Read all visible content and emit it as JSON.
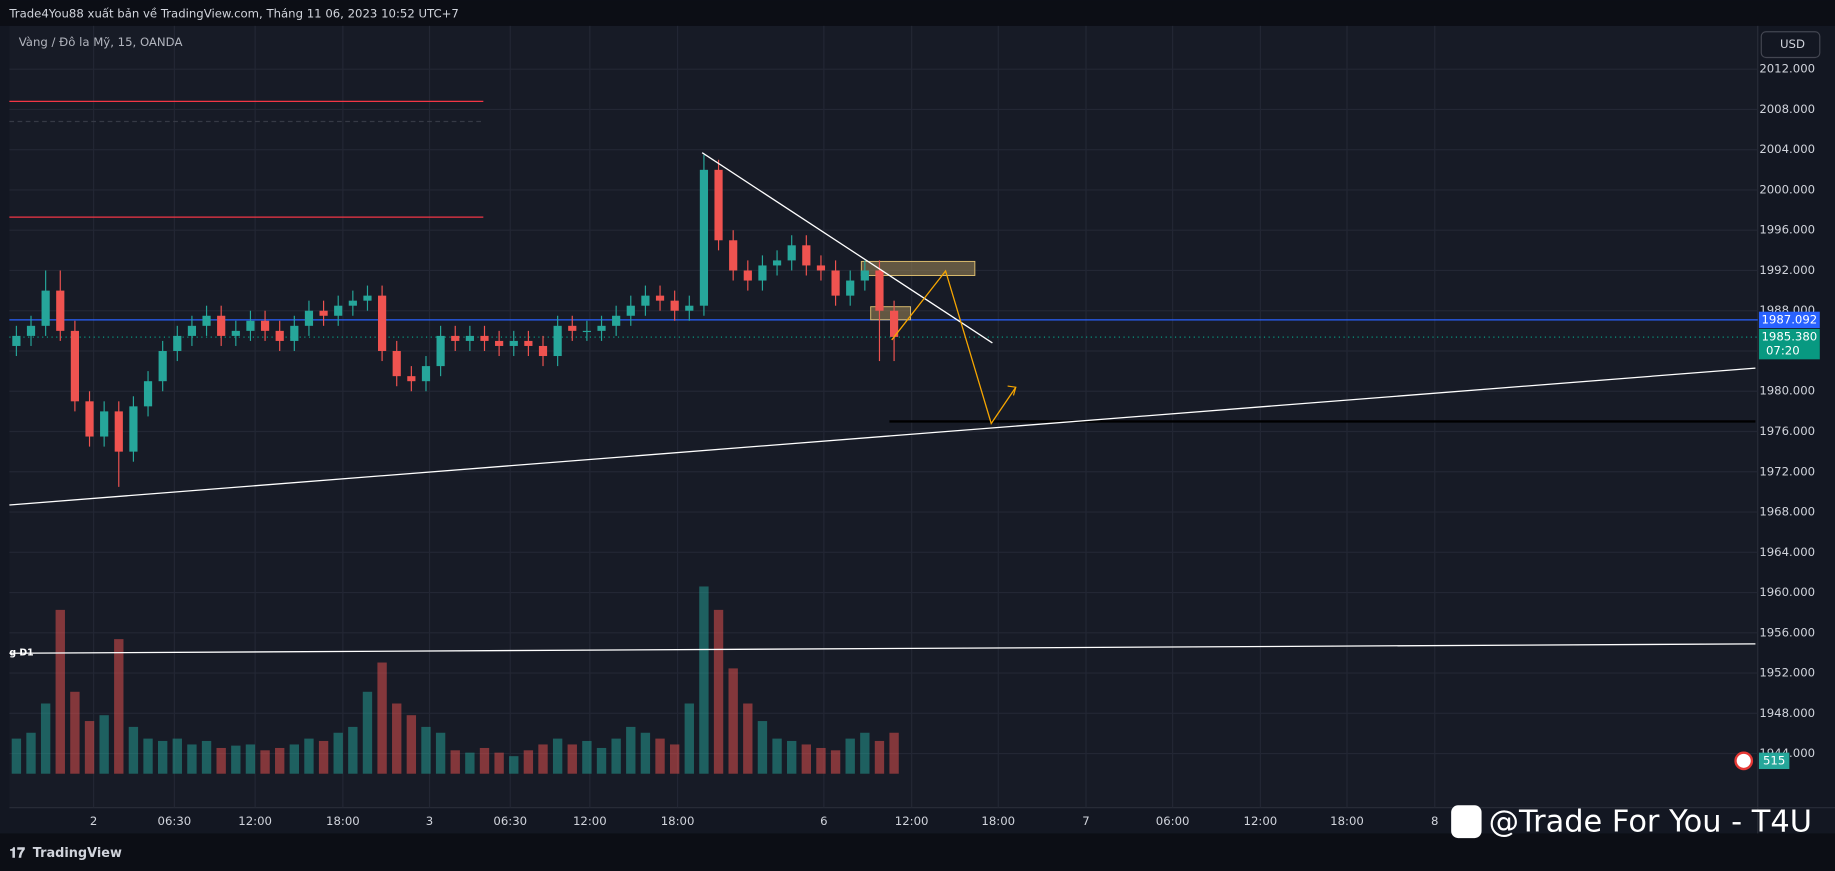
{
  "header": {
    "title": "Trade4You88 xuất bản về TradingView.com, Tháng 11 06, 2023 10:52 UTC+7"
  },
  "chart_data": {
    "type": "candlestick",
    "symbol": "Vàng / Đô la Mỹ, 15, OANDA",
    "currency": "USD",
    "up_color": "#26a69a",
    "down_color": "#ef5350",
    "open": [
      1984.5,
      1985.5,
      1986.5,
      1990,
      1986,
      1979,
      1975.5,
      1978,
      1974,
      1978.5,
      1981,
      1984,
      1985.5,
      1986.5,
      1987.5,
      1985.5,
      1986,
      1987,
      1986,
      1985,
      1986.5,
      1988,
      1987.5,
      1988.5,
      1989,
      1989.5,
      1984,
      1981.5,
      1981,
      1982.5,
      1985.5,
      1985,
      1985.5,
      1985,
      1984.5,
      1985,
      1984.5,
      1983.5,
      1986.5,
      1986,
      1986,
      1986.5,
      1987.5,
      1988.5,
      1989.5,
      1989,
      1988,
      1988.5,
      2002,
      1995,
      1992,
      1991,
      1992.5,
      1993,
      1994.5,
      1992.5,
      1992,
      1989.5,
      1991,
      1992,
      1988
    ],
    "high": [
      1986.5,
      1987.5,
      1992,
      1992,
      1987,
      1980,
      1979,
      1979,
      1979.5,
      1982,
      1985,
      1986.5,
      1987.5,
      1988.5,
      1988.5,
      1987,
      1988,
      1988,
      1987,
      1987.5,
      1989,
      1989,
      1989.5,
      1990,
      1990.5,
      1990.5,
      1985,
      1982.5,
      1983.5,
      1986.5,
      1986.5,
      1986.5,
      1986.5,
      1986,
      1986,
      1986,
      1985.5,
      1987.5,
      1987.5,
      1987,
      1987.5,
      1988.5,
      1989.5,
      1990.5,
      1990.5,
      1990,
      1989.5,
      2003.5,
      2003,
      1996,
      1993,
      1993.5,
      1994,
      1995.5,
      1995.5,
      1993.5,
      1993,
      1992,
      1993,
      1993,
      1989
    ],
    "low": [
      1983.5,
      1984.5,
      1985.5,
      1985,
      1978,
      1974.5,
      1974.5,
      1970.5,
      1973,
      1977.5,
      1980,
      1983,
      1984.5,
      1985.5,
      1984.5,
      1984.5,
      1985,
      1985,
      1984,
      1984,
      1985.5,
      1986.5,
      1986.5,
      1987.5,
      1988,
      1983,
      1980.5,
      1980,
      1980,
      1981.5,
      1984,
      1984,
      1984,
      1983.5,
      1983.5,
      1983.5,
      1982.5,
      1982.5,
      1985,
      1985,
      1985,
      1985.5,
      1986.5,
      1987.5,
      1988,
      1987,
      1987,
      1987.5,
      1994,
      1991,
      1990,
      1990,
      1991.5,
      1992,
      1991.5,
      1991,
      1988.5,
      1988.5,
      1990,
      1983,
      1983
    ],
    "close": [
      1985.5,
      1986.5,
      1990,
      1986,
      1979,
      1975.5,
      1978,
      1974,
      1978.5,
      1981,
      1984,
      1985.5,
      1986.5,
      1987.5,
      1985.5,
      1986,
      1987,
      1986,
      1985,
      1986.5,
      1988,
      1987.5,
      1988.5,
      1989,
      1989.5,
      1984,
      1981.5,
      1981,
      1982.5,
      1985.5,
      1985,
      1985.5,
      1985,
      1984.5,
      1985,
      1984.5,
      1983.5,
      1986.5,
      1986,
      1986,
      1986.5,
      1987.5,
      1988.5,
      1989.5,
      1989,
      1988,
      1988.5,
      2002,
      1995,
      1992,
      1991,
      1992.5,
      1993,
      1994.5,
      1992.5,
      1992,
      1989.5,
      1991,
      1992,
      1988,
      1985.4
    ],
    "volume": [
      30,
      35,
      60,
      140,
      70,
      45,
      50,
      115,
      40,
      30,
      28,
      30,
      25,
      28,
      22,
      24,
      25,
      20,
      22,
      25,
      30,
      28,
      35,
      40,
      70,
      95,
      60,
      50,
      40,
      35,
      20,
      18,
      22,
      18,
      15,
      20,
      25,
      30,
      25,
      28,
      22,
      30,
      40,
      35,
      30,
      25,
      60,
      160,
      140,
      90,
      60,
      45,
      30,
      28,
      25,
      22,
      20,
      30,
      35,
      28,
      35
    ],
    "ylim": [
      1942,
      2016.3
    ],
    "yticks": [
      {
        "value": 2012,
        "label": "2012.000"
      },
      {
        "value": 2008,
        "label": "2008.000"
      },
      {
        "value": 2004,
        "label": "2004.000"
      },
      {
        "value": 2000,
        "label": "2000.000"
      },
      {
        "value": 1996,
        "label": "1996.000"
      },
      {
        "value": 1992,
        "label": "1992.000"
      },
      {
        "value": 1988,
        "label": "1988.000"
      },
      {
        "value": 1984,
        "label": "1984.000"
      },
      {
        "value": 1980,
        "label": "1980.000"
      },
      {
        "value": 1976,
        "label": "1976.000"
      },
      {
        "value": 1972,
        "label": "1972.000"
      },
      {
        "value": 1968,
        "label": "1968.000"
      },
      {
        "value": 1964,
        "label": "1964.000"
      },
      {
        "value": 1960,
        "label": "1960.000"
      },
      {
        "value": 1956,
        "label": "1956.000"
      },
      {
        "value": 1952,
        "label": "1952.000"
      },
      {
        "value": 1948,
        "label": "1948.000"
      },
      {
        "value": 1944,
        "label": "1944.000"
      }
    ],
    "xticks": [
      "2",
      "06:30",
      "12:00",
      "18:00",
      "3",
      "06:30",
      "12:00",
      "18:00",
      "6",
      "12:00",
      "18:00",
      "7",
      "06:00",
      "12:00",
      "18:00",
      "8"
    ],
    "grid": true,
    "last_price": {
      "value": 1987.092,
      "color": "#2962ff"
    },
    "current_price": {
      "value": 1985.38,
      "label": "1985.380",
      "countdown": "07:20",
      "color": "#089981"
    },
    "volume_label": "515",
    "levels": [
      {
        "price": 2008.8,
        "color": "#f23645"
      },
      {
        "price": 2006.8,
        "color": "#363a45"
      },
      {
        "price": 1997.3,
        "color": "#f23645"
      },
      {
        "price": 1977,
        "color": "#000000"
      }
    ],
    "lines": [
      {
        "prices": [
          1968.7,
          1982.3
        ],
        "color": "#ffffff"
      },
      {
        "prices": [
          2003.7,
          1984.8
        ],
        "color": "#ffffff"
      },
      {
        "prices": [
          1953.97,
          1954.9
        ],
        "color": "#ffffff"
      },
      {
        "prices": [
          1985.1,
          1991.95,
          1976.8,
          1980.4
        ],
        "color": "#f7a600"
      }
    ],
    "zones": [
      {
        "prices": [
          1992.9,
          1991.5
        ],
        "color": "#a1885a"
      },
      {
        "prices": [
          1988.4,
          1987.1
        ],
        "color": "#a1885a"
      }
    ],
    "line_label": "g D1"
  },
  "footer": {
    "brand": "TradingView",
    "watermark": "@Trade For You - T4U"
  }
}
